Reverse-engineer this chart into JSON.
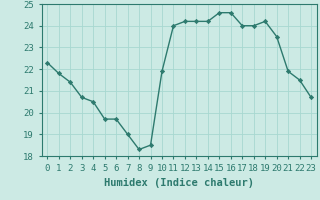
{
  "x": [
    0,
    1,
    2,
    3,
    4,
    5,
    6,
    7,
    8,
    9,
    10,
    11,
    12,
    13,
    14,
    15,
    16,
    17,
    18,
    19,
    20,
    21,
    22,
    23
  ],
  "y": [
    22.3,
    21.8,
    21.4,
    20.7,
    20.5,
    19.7,
    19.7,
    19.0,
    18.3,
    18.5,
    21.9,
    24.0,
    24.2,
    24.2,
    24.2,
    24.6,
    24.6,
    24.0,
    24.0,
    24.2,
    23.5,
    21.9,
    21.5,
    20.7
  ],
  "line_color": "#2d7a6e",
  "marker": "D",
  "marker_size": 2.2,
  "bg_color": "#cceae4",
  "grid_color": "#a8d8d0",
  "xlabel": "Humidex (Indice chaleur)",
  "ylim": [
    18,
    25
  ],
  "xlim": [
    -0.5,
    23.5
  ],
  "yticks": [
    18,
    19,
    20,
    21,
    22,
    23,
    24,
    25
  ],
  "xticks": [
    0,
    1,
    2,
    3,
    4,
    5,
    6,
    7,
    8,
    9,
    10,
    11,
    12,
    13,
    14,
    15,
    16,
    17,
    18,
    19,
    20,
    21,
    22,
    23
  ],
  "xlabel_fontsize": 7.5,
  "tick_fontsize": 6.5,
  "line_width": 1.0,
  "spine_color": "#2d7a6e",
  "tick_color": "#2d7a6e"
}
